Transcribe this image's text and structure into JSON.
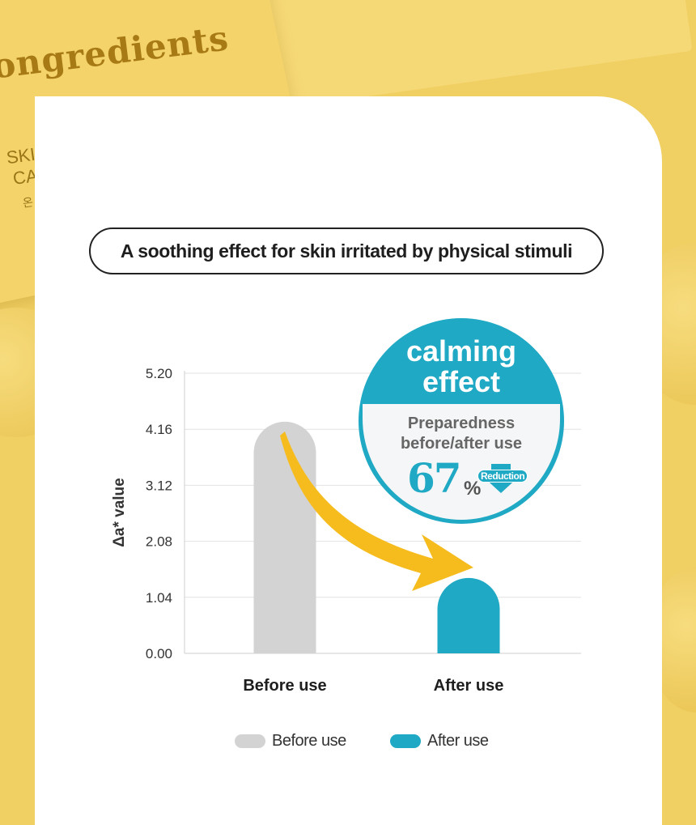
{
  "background": {
    "brand_word": "ongredients",
    "pack_lines": [
      "SKI",
      "CA",
      "온"
    ]
  },
  "headline": "A soothing effect for skin irritated by physical stimuli",
  "callout": {
    "title_line1": "calming",
    "title_line2": "effect",
    "sub_line1": "Preparedness",
    "sub_line2": "before/after use",
    "percent": "67",
    "percent_sign": "%",
    "tag": "Reduction"
  },
  "colors": {
    "before": "#d3d3d3",
    "after": "#1fa9c4",
    "arrow": "#f6bc1e"
  },
  "chart_data": {
    "type": "bar",
    "ylabel": "Δa* value",
    "y_ticks": [
      "5.20",
      "4.16",
      "3.12",
      "2.08",
      "1.04",
      "0.00"
    ],
    "ylim": [
      0,
      5.2
    ],
    "categories": [
      "Before use",
      "After use"
    ],
    "values": [
      4.3,
      1.4
    ],
    "grid": true,
    "legend": [
      {
        "label": "Before use",
        "color": "#d3d3d3"
      },
      {
        "label": "After use",
        "color": "#1fa9c4"
      }
    ],
    "legend_position": "bottom"
  }
}
